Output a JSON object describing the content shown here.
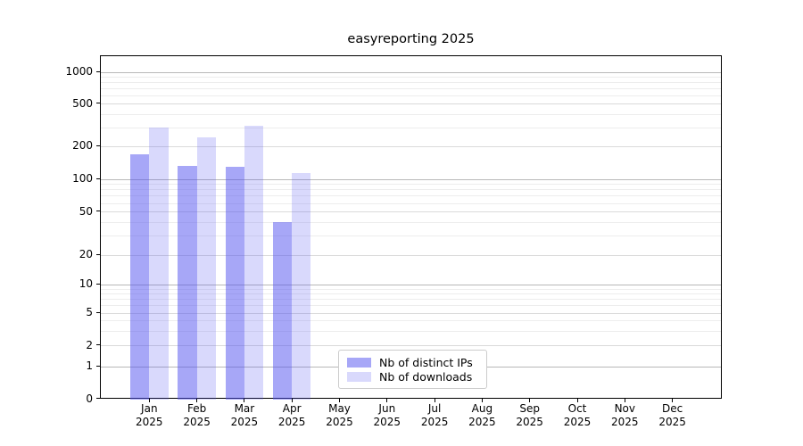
{
  "chart_data": {
    "type": "bar",
    "title": "easyreporting 2025",
    "x_months": [
      "Jan",
      "Feb",
      "Mar",
      "Apr",
      "May",
      "Jun",
      "Jul",
      "Aug",
      "Sep",
      "Oct",
      "Nov",
      "Dec"
    ],
    "x_year": "2025",
    "y_ticks": [
      0,
      1,
      2,
      5,
      10,
      20,
      50,
      100,
      200,
      500,
      1000
    ],
    "y_scale": "symlog",
    "ylim": [
      0,
      1400
    ],
    "grid": "major and minor horizontal gridlines",
    "legend_position": "lower center",
    "series": [
      {
        "name": "Nb of distinct IPs",
        "fill": "rgba(80,80,240,0.50)",
        "values": [
          170,
          133,
          131,
          40,
          0,
          0,
          0,
          0,
          0,
          0,
          0,
          0
        ]
      },
      {
        "name": "Nb of downloads",
        "fill": "rgba(80,80,240,0.22)",
        "values": [
          300,
          245,
          310,
          115,
          0,
          0,
          0,
          0,
          0,
          0,
          0,
          0
        ]
      }
    ]
  }
}
